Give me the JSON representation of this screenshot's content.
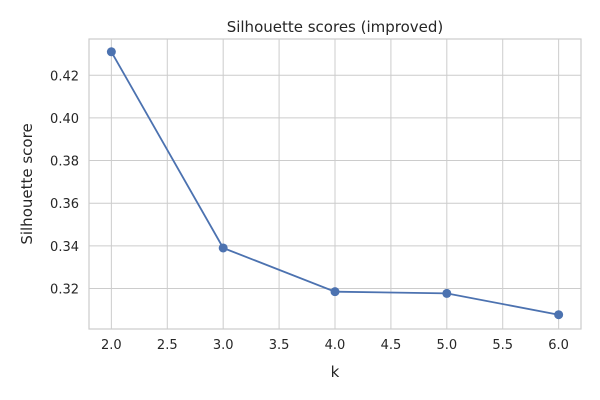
{
  "chart_data": {
    "type": "line",
    "title": "Silhouette scores (improved)",
    "xlabel": "k",
    "ylabel": "Silhouette score",
    "x": [
      2,
      3,
      4,
      5,
      6
    ],
    "series": [
      {
        "values": [
          0.431,
          0.339,
          0.3185,
          0.3177,
          0.3077
        ],
        "color": "#4c72b0"
      }
    ],
    "xticks": [
      "2.0",
      "2.5",
      "3.0",
      "3.5",
      "4.0",
      "4.5",
      "5.0",
      "5.5",
      "6.0"
    ],
    "yticks": [
      "0.32",
      "0.34",
      "0.36",
      "0.38",
      "0.40",
      "0.42"
    ],
    "xlim": [
      1.8,
      6.2
    ],
    "ylim": [
      0.301,
      0.437
    ],
    "grid": true,
    "marker": "circle"
  }
}
